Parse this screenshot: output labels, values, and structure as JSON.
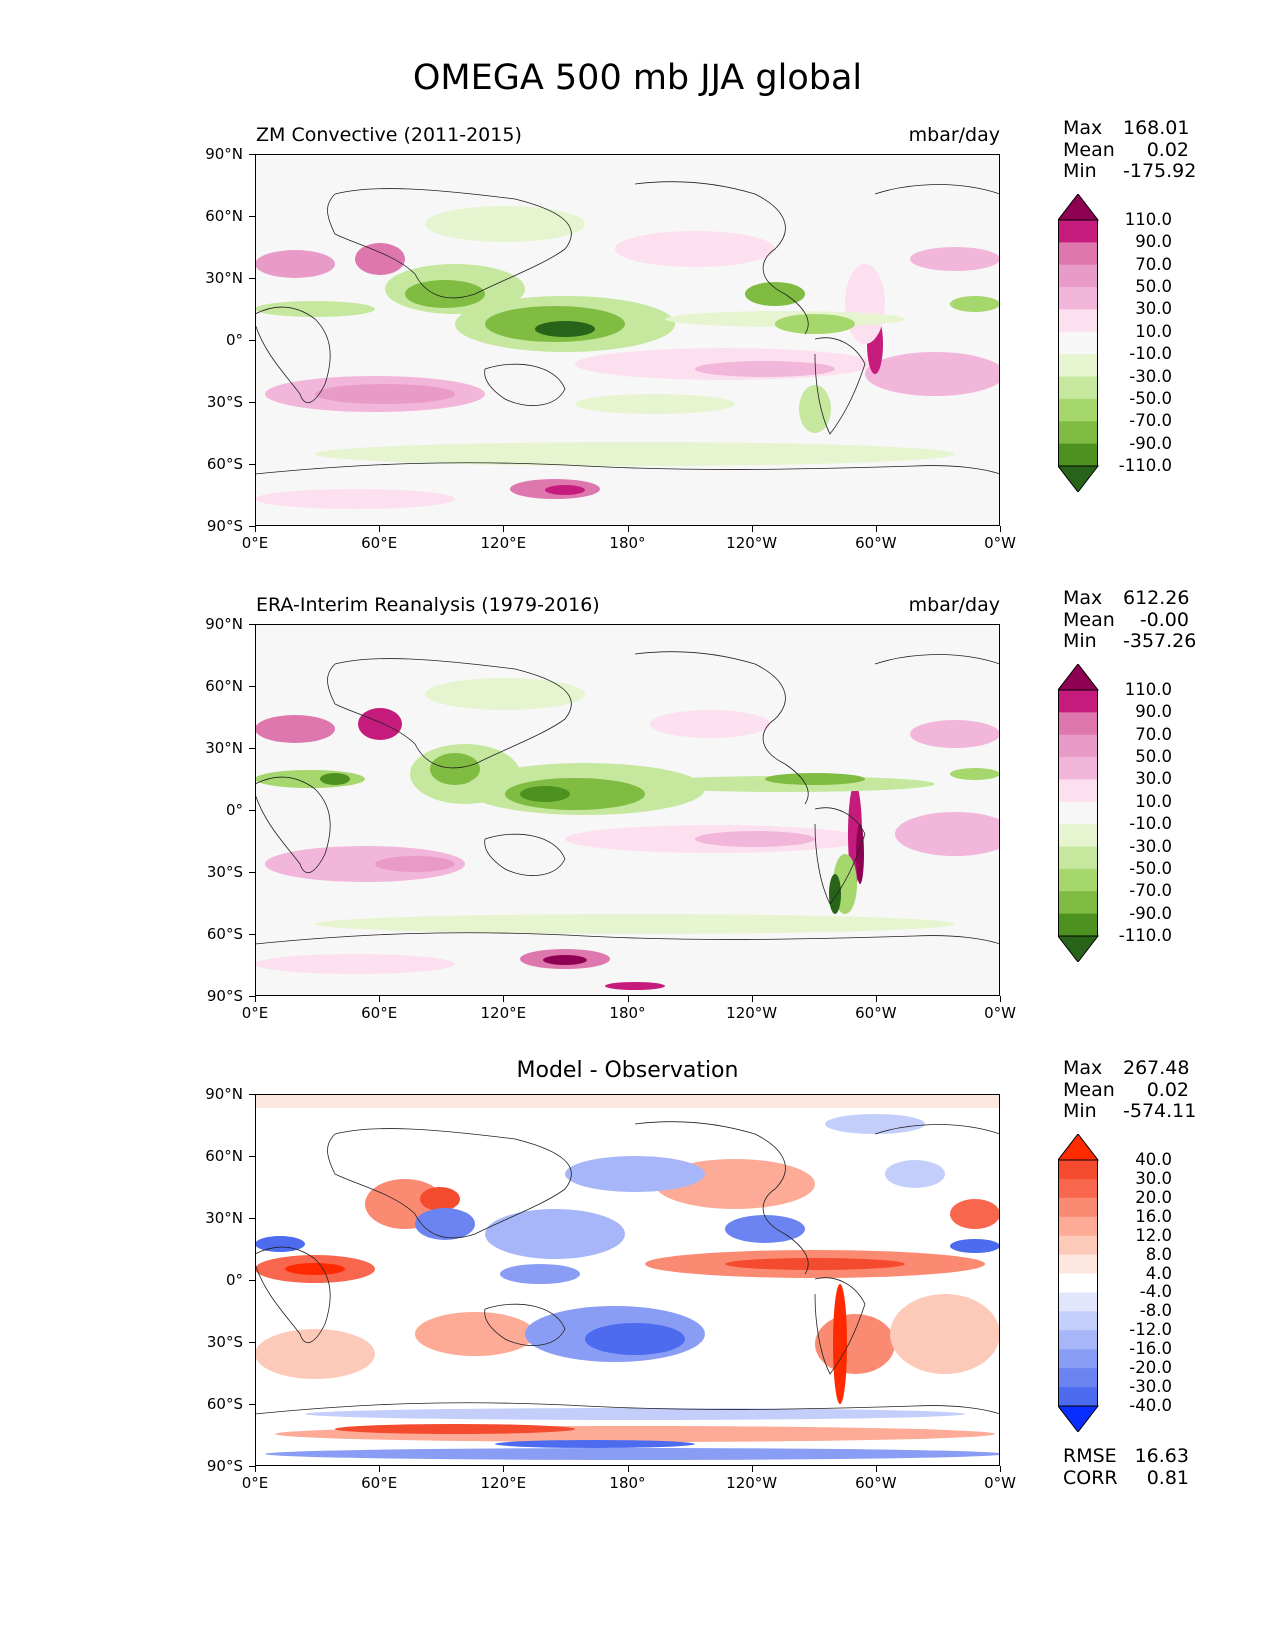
{
  "figure": {
    "title": "OMEGA 500 mb JJA global"
  },
  "panels": [
    {
      "title": "ZM Convective (2011-2015)",
      "units": "mbar/day",
      "stats": {
        "max_label": "Max",
        "max": "168.01",
        "mean_label": "Mean",
        "mean": "0.02",
        "min_label": "Min",
        "min": "-175.92"
      },
      "colorbar": {
        "ticks": [
          "110.0",
          "90.0",
          "70.0",
          "50.0",
          "30.0",
          "10.0",
          "-10.0",
          "-30.0",
          "-50.0",
          "-70.0",
          "-90.0",
          "-110.0"
        ],
        "colors": [
          "#8e0152",
          "#c51b7d",
          "#de77ae",
          "#e99bc7",
          "#f1b6da",
          "#fde0ef",
          "#f7f7f7",
          "#e6f5d0",
          "#c5e79e",
          "#a5d76c",
          "#7fbc41",
          "#4d9221",
          "#276419"
        ]
      }
    },
    {
      "title": "ERA-Interim Reanalysis (1979-2016)",
      "units": "mbar/day",
      "stats": {
        "max_label": "Max",
        "max": "612.26",
        "mean_label": "Mean",
        "mean": "-0.00",
        "min_label": "Min",
        "min": "-357.26"
      },
      "colorbar": {
        "ticks": [
          "110.0",
          "90.0",
          "70.0",
          "50.0",
          "30.0",
          "10.0",
          "-10.0",
          "-30.0",
          "-50.0",
          "-70.0",
          "-90.0",
          "-110.0"
        ],
        "colors": [
          "#8e0152",
          "#c51b7d",
          "#de77ae",
          "#e99bc7",
          "#f1b6da",
          "#fde0ef",
          "#f7f7f7",
          "#e6f5d0",
          "#c5e79e",
          "#a5d76c",
          "#7fbc41",
          "#4d9221",
          "#276419"
        ]
      }
    },
    {
      "title": "Model - Observation",
      "stats": {
        "max_label": "Max",
        "max": "267.48",
        "mean_label": "Mean",
        "mean": "0.02",
        "min_label": "Min",
        "min": "-574.11"
      },
      "metrics": {
        "rmse_label": "RMSE",
        "rmse": "16.63",
        "corr_label": "CORR",
        "corr": "0.81"
      },
      "colorbar": {
        "ticks": [
          "40.0",
          "30.0",
          "20.0",
          "16.0",
          "12.0",
          "8.0",
          "4.0",
          "-4.0",
          "-8.0",
          "-12.0",
          "-16.0",
          "-20.0",
          "-30.0",
          "-40.0"
        ],
        "colors": [
          "#ff2a00",
          "#f44a2e",
          "#f8674d",
          "#fb8a72",
          "#fdaa96",
          "#fdc9b9",
          "#fee7de",
          "#ffffff",
          "#e2e6fd",
          "#c4cefb",
          "#a7b6f8",
          "#899df5",
          "#6b84f1",
          "#4d6bee",
          "#0a2dff"
        ]
      }
    }
  ],
  "axes": {
    "lat_ticks": [
      "90°N",
      "60°N",
      "30°N",
      "0°",
      "30°S",
      "60°S",
      "90°S"
    ],
    "lon_ticks": [
      "0°E",
      "60°E",
      "120°E",
      "180°",
      "120°W",
      "60°W",
      "0°W"
    ]
  },
  "chart_data": [
    {
      "type": "heatmap",
      "title": "ZM Convective (2011-2015)",
      "variable": "OMEGA 500 mb JJA global",
      "units": "mbar/day",
      "x_range_deg": [
        0,
        360
      ],
      "y_range_deg": [
        -90,
        90
      ],
      "levels": [
        -110,
        -90,
        -70,
        -50,
        -30,
        -10,
        10,
        30,
        50,
        70,
        90,
        110
      ],
      "max": 168.01,
      "mean": 0.02,
      "min": -175.92
    },
    {
      "type": "heatmap",
      "title": "ERA-Interim Reanalysis (1979-2016)",
      "variable": "OMEGA 500 mb JJA global",
      "units": "mbar/day",
      "x_range_deg": [
        0,
        360
      ],
      "y_range_deg": [
        -90,
        90
      ],
      "levels": [
        -110,
        -90,
        -70,
        -50,
        -30,
        -10,
        10,
        30,
        50,
        70,
        90,
        110
      ],
      "max": 612.26,
      "mean": -0.0,
      "min": -357.26
    },
    {
      "type": "heatmap",
      "title": "Model - Observation",
      "variable": "OMEGA 500 mb JJA global difference",
      "x_range_deg": [
        0,
        360
      ],
      "y_range_deg": [
        -90,
        90
      ],
      "levels": [
        -40,
        -30,
        -20,
        -16,
        -12,
        -8,
        -4,
        4,
        8,
        12,
        16,
        20,
        30,
        40
      ],
      "max": 267.48,
      "mean": 0.02,
      "min": -574.11,
      "rmse": 16.63,
      "corr": 0.81
    }
  ]
}
